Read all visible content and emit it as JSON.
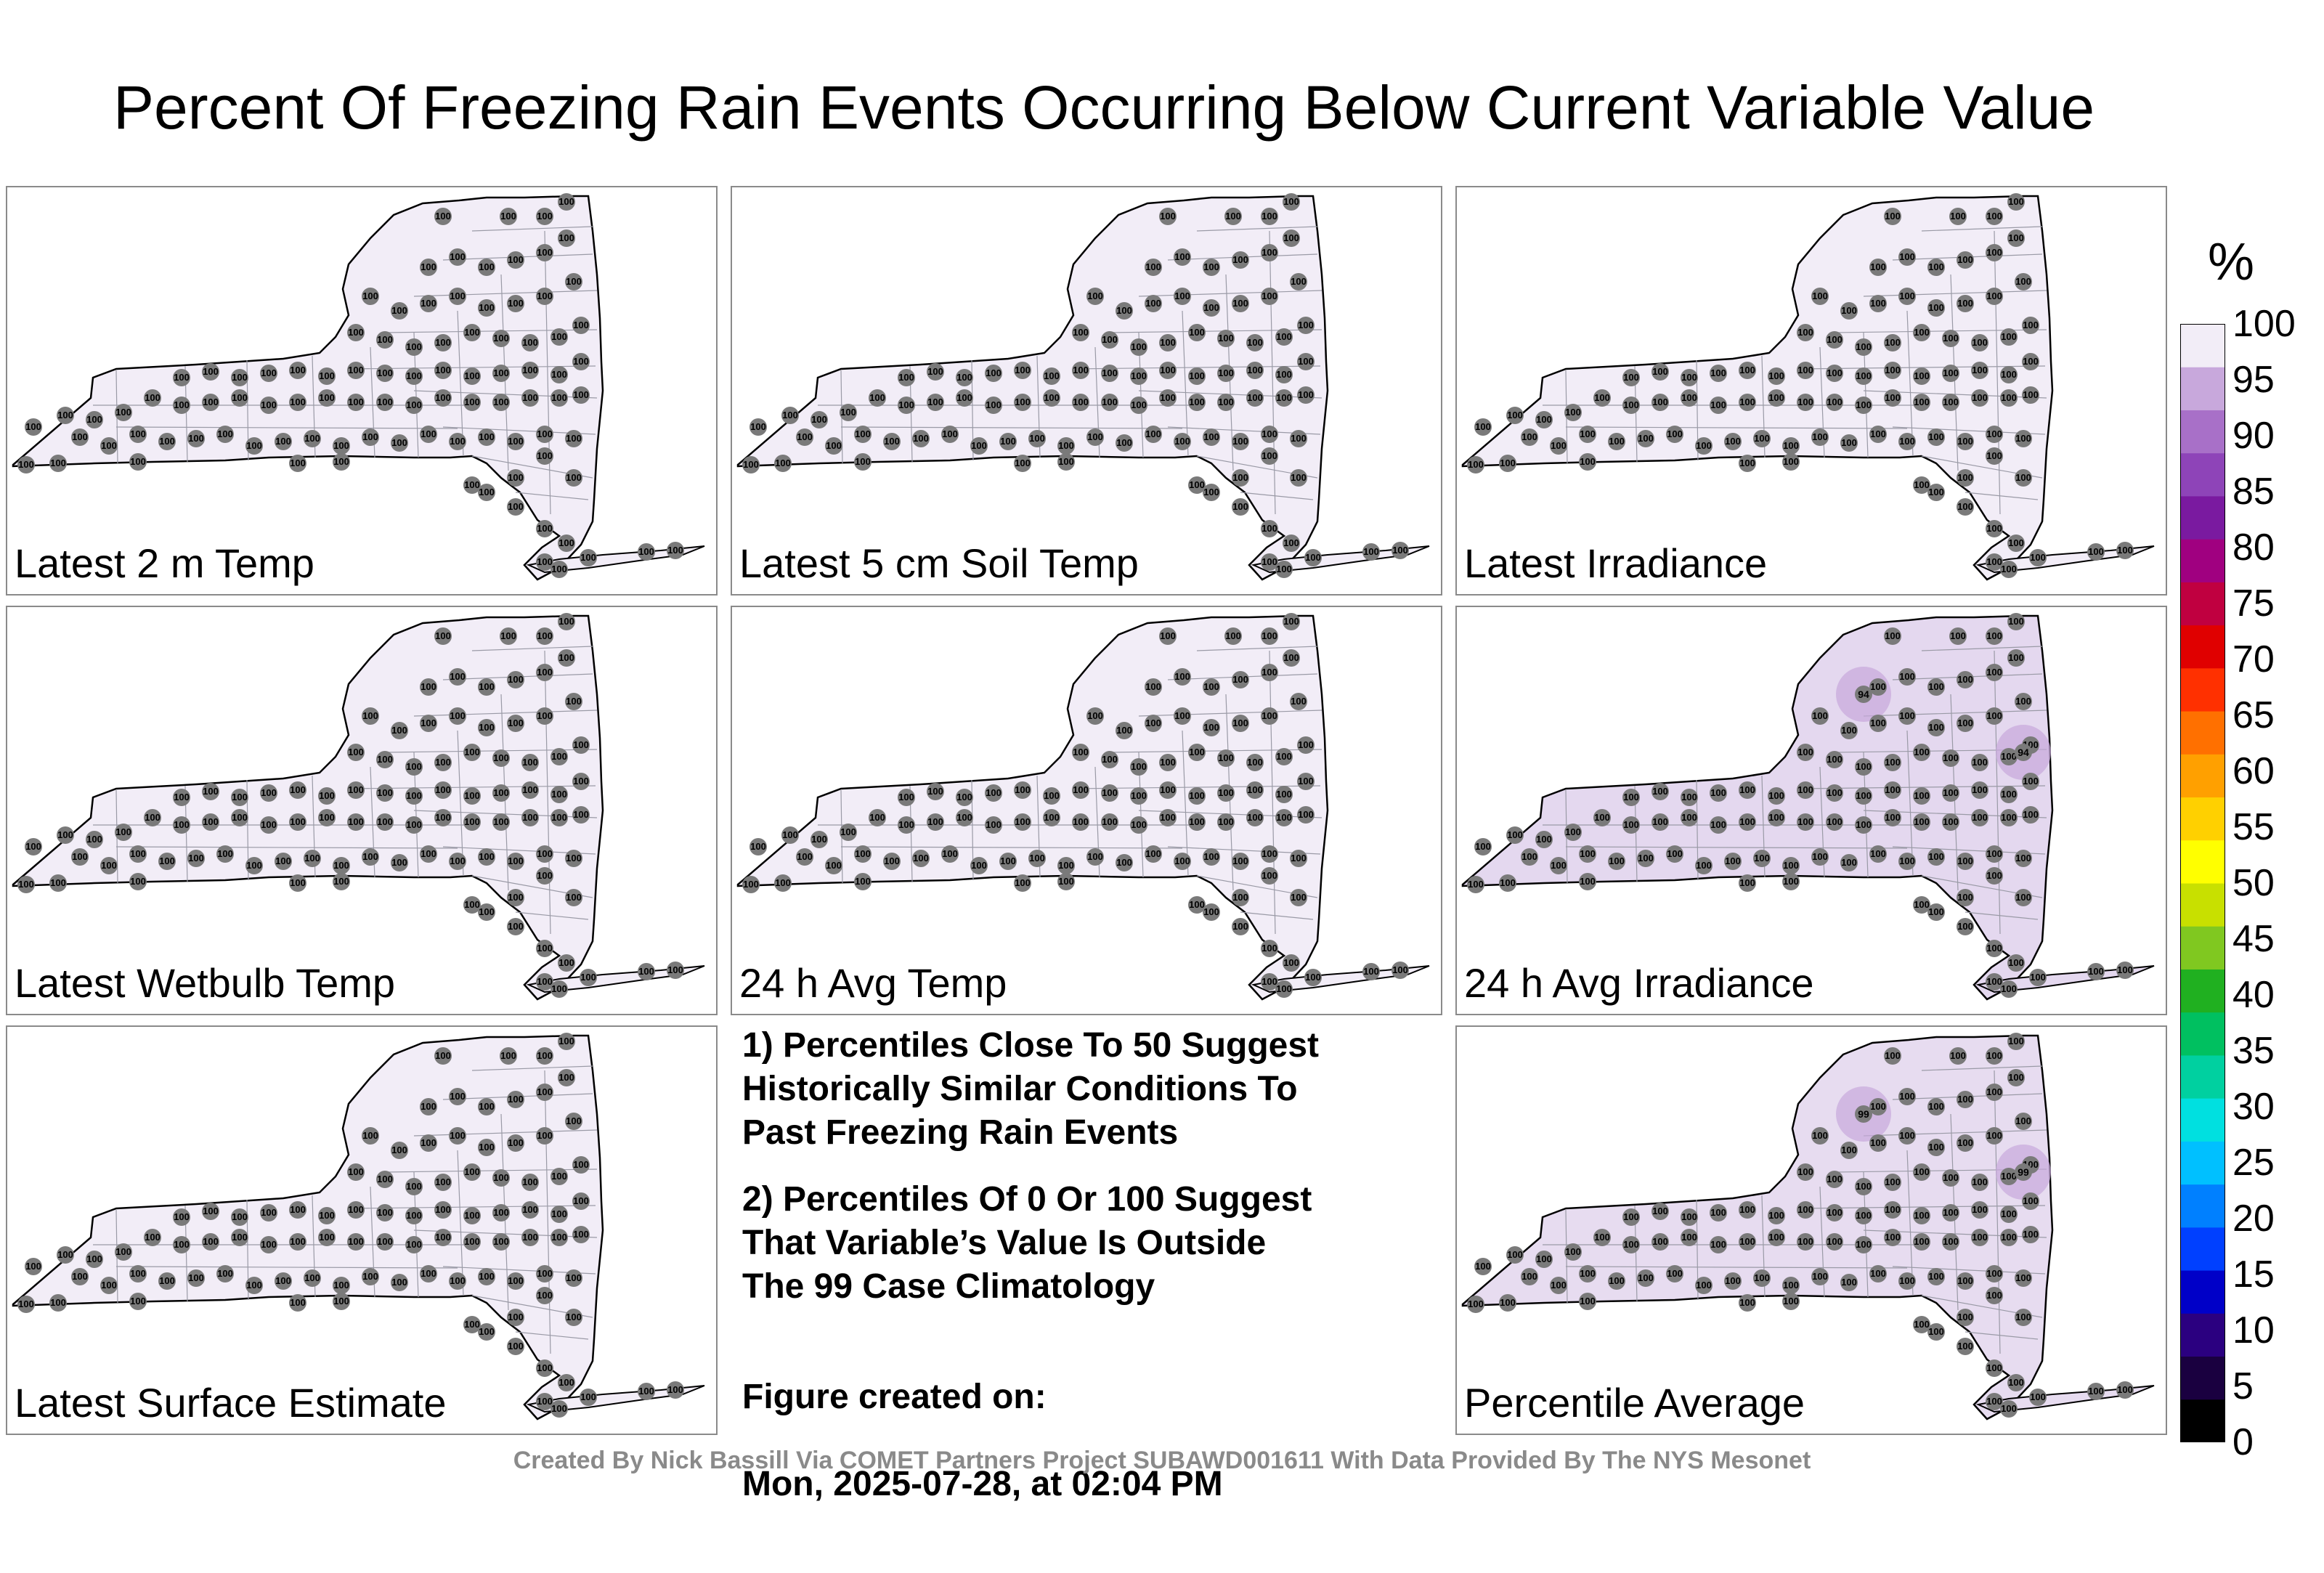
{
  "title": "Percent Of Freezing Rain Events Occurring Below Current Variable Value",
  "panels": [
    {
      "label": "Latest 2 m Temp",
      "shade": "#f2edf7",
      "values": []
    },
    {
      "label": "Latest 5 cm Soil Temp",
      "shade": "#f2edf7",
      "values": []
    },
    {
      "label": "Latest Irradiance",
      "shade": "#f2edf7",
      "values": []
    },
    {
      "label": "Latest Wetbulb Temp",
      "shade": "#f2edf7",
      "values": []
    },
    {
      "label": "24 h Avg Temp",
      "shade": "#f2edf7",
      "values": []
    },
    {
      "label": "24 h Avg Irradiance",
      "shade": "#e4d8ef",
      "values": [
        {
          "value": "94"
        },
        {
          "value": "94"
        }
      ]
    },
    {
      "label": "Latest Surface Estimate",
      "shade": "#f2edf7",
      "values": []
    },
    {
      "label": "Percentile Average",
      "shade": "#e7dcf0",
      "values": [
        {
          "value": "99"
        },
        {
          "value": "99"
        }
      ]
    }
  ],
  "station_default_value": "100",
  "notes": {
    "note1": "1) Percentiles Close To 50 Suggest\nHistorically Similar Conditions To\nPast Freezing Rain Events",
    "note2": "2) Percentiles Of 0 Or 100 Suggest\nThat Variable’s Value Is Outside\nThe 99 Case Climatology",
    "created_label": "Figure created on:",
    "created_date": "Mon, 2025-07-28, at 02:04 PM"
  },
  "credit": "Created By Nick Bassill Via COMET Partners Project SUBAWD001611 With Data Provided By The NYS Mesonet",
  "legend": {
    "unit": "%",
    "ticks": [
      "100",
      "95",
      "90",
      "85",
      "80",
      "75",
      "70",
      "65",
      "60",
      "55",
      "50",
      "45",
      "40",
      "35",
      "30",
      "25",
      "20",
      "15",
      "10",
      "5",
      "0"
    ],
    "colors": [
      "#000000",
      "#1a0040",
      "#2b0080",
      "#0000c8",
      "#0040ff",
      "#0080ff",
      "#00c0ff",
      "#00e0e0",
      "#00d0a0",
      "#00c060",
      "#20b020",
      "#80c820",
      "#c8e000",
      "#ffff00",
      "#ffd000",
      "#ffa000",
      "#ff7000",
      "#ff3000",
      "#e00000",
      "#c00040",
      "#a00080",
      "#7a1aa0",
      "#8e44b8",
      "#a870c8",
      "#c8a8dc",
      "#f2edf7"
    ]
  }
}
